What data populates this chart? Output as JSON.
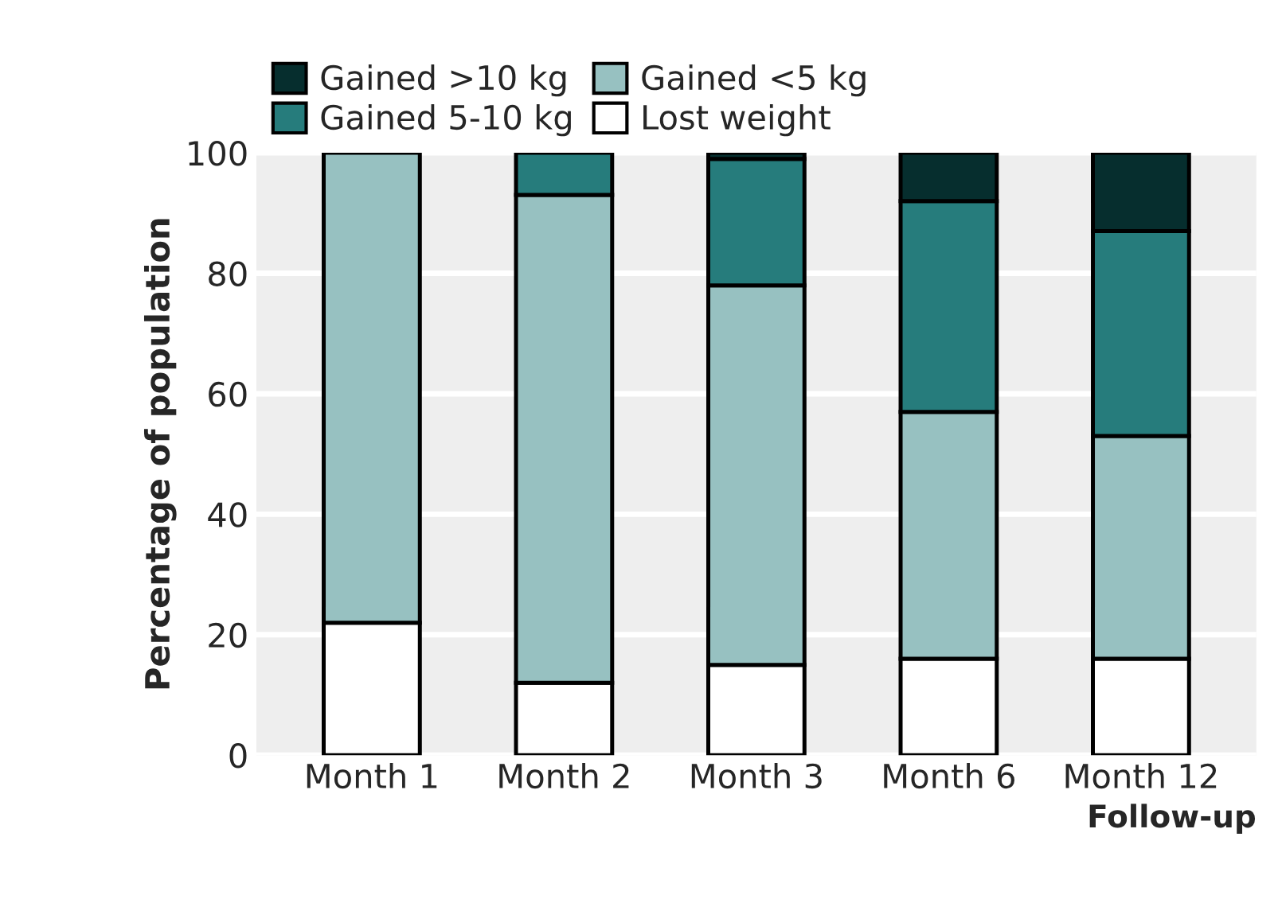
{
  "chart_data": {
    "type": "bar",
    "stacked": true,
    "xlabel": "Follow-up",
    "ylabel": "Percentage of population",
    "categories": [
      "Month 1",
      "Month 2",
      "Month 3",
      "Month 6",
      "Month 12"
    ],
    "series": [
      {
        "name": "Lost weight",
        "color": "#ffffff",
        "values": [
          22,
          12,
          15,
          16,
          16
        ]
      },
      {
        "name": "Gained <5 kg",
        "color": "#97c1c1",
        "values": [
          78,
          81,
          63,
          41,
          37
        ]
      },
      {
        "name": "Gained 5-10 kg",
        "color": "#267c7c",
        "values": [
          0,
          7,
          21,
          35,
          34
        ]
      },
      {
        "name": "Gained >10 kg",
        "color": "#062e2e",
        "values": [
          0,
          0,
          1,
          8,
          13
        ]
      }
    ],
    "ylim": [
      0,
      100
    ],
    "yticks": [
      0,
      20,
      40,
      60,
      80,
      100
    ],
    "grid": "y",
    "legend": "top"
  }
}
